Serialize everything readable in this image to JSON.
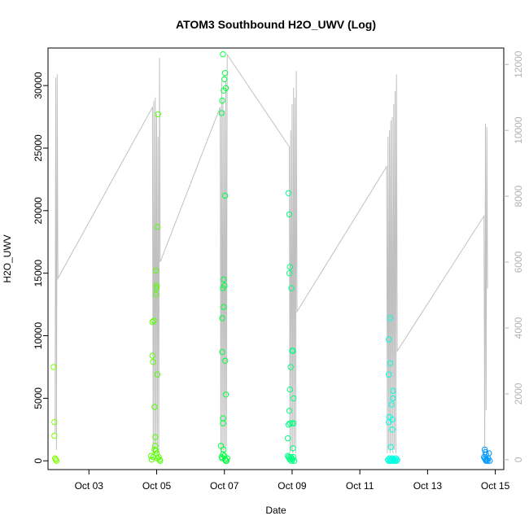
{
  "chart_data": {
    "type": "scatter",
    "title": "ATOM3 Southbound H2O_UWV (Log)",
    "xlabel": "Date",
    "ylabel": "H2O_UWV",
    "xlim": [
      "2016-10-01T19:00",
      "2016-10-15T06:00"
    ],
    "ylim": [
      -700,
      33000
    ],
    "y2lim": [
      -300,
      12500
    ],
    "x_ticks": [
      {
        "label": "Oct 03",
        "x": "2016-10-03"
      },
      {
        "label": "Oct 05",
        "x": "2016-10-05"
      },
      {
        "label": "Oct 07",
        "x": "2016-10-07"
      },
      {
        "label": "Oct 09",
        "x": "2016-10-09"
      },
      {
        "label": "Oct 11",
        "x": "2016-10-11"
      },
      {
        "label": "Oct 13",
        "x": "2016-10-13"
      },
      {
        "label": "Oct 15",
        "x": "2016-10-15"
      }
    ],
    "y_ticks": [
      0,
      5000,
      10000,
      15000,
      20000,
      25000,
      30000
    ],
    "y2_ticks": [
      0,
      2000,
      4000,
      6000,
      8000,
      10000,
      12000
    ],
    "series": [
      {
        "color": "#c0c0c0",
        "axis": "right",
        "style": "line",
        "points": [
          [
            "2016-10-02T00:00",
            800
          ],
          [
            "2016-10-02T00:30",
            11600
          ],
          [
            "2016-10-02T01:00",
            300
          ],
          [
            "2016-10-02T01:30",
            11700
          ],
          [
            "2016-10-02T02:00",
            5500
          ],
          [
            "2016-10-04T21:00",
            10700
          ],
          [
            "2016-10-04T21:30",
            200
          ],
          [
            "2016-10-04T22:00",
            10900
          ],
          [
            "2016-10-04T22:30",
            300
          ],
          [
            "2016-10-04T23:00",
            11000
          ],
          [
            "2016-10-04T23:30",
            400
          ],
          [
            "2016-10-05T00:00",
            10500
          ],
          [
            "2016-10-05T00:30",
            200
          ],
          [
            "2016-10-05T01:00",
            9800
          ],
          [
            "2016-10-05T01:30",
            300
          ],
          [
            "2016-10-05T02:00",
            12200
          ],
          [
            "2016-10-05T02:30",
            6000
          ],
          [
            "2016-10-06T21:00",
            10700
          ],
          [
            "2016-10-06T21:30",
            200
          ],
          [
            "2016-10-06T22:00",
            11500
          ],
          [
            "2016-10-06T22:30",
            300
          ],
          [
            "2016-10-06T23:00",
            11000
          ],
          [
            "2016-10-06T23:30",
            200
          ],
          [
            "2016-10-07T00:00",
            10600
          ],
          [
            "2016-10-07T00:30",
            300
          ],
          [
            "2016-10-07T01:00",
            11500
          ],
          [
            "2016-10-07T01:30",
            400
          ],
          [
            "2016-10-07T02:00",
            12300
          ],
          [
            "2016-10-08T22:00",
            9500
          ],
          [
            "2016-10-08T22:30",
            200
          ],
          [
            "2016-10-08T23:00",
            10000
          ],
          [
            "2016-10-08T23:30",
            300
          ],
          [
            "2016-10-09T00:00",
            10800
          ],
          [
            "2016-10-09T00:30",
            200
          ],
          [
            "2016-10-09T01:00",
            11300
          ],
          [
            "2016-10-09T01:30",
            400
          ],
          [
            "2016-10-09T02:00",
            11000
          ],
          [
            "2016-10-09T02:30",
            200
          ],
          [
            "2016-10-09T03:00",
            11800
          ],
          [
            "2016-10-09T03:30",
            4500
          ],
          [
            "2016-10-11T19:00",
            8900
          ],
          [
            "2016-10-11T19:30",
            200
          ],
          [
            "2016-10-11T20:00",
            9800
          ],
          [
            "2016-10-11T20:30",
            300
          ],
          [
            "2016-10-11T21:00",
            10000
          ],
          [
            "2016-10-11T21:30",
            200
          ],
          [
            "2016-10-11T22:00",
            10300
          ],
          [
            "2016-10-11T22:30",
            300
          ],
          [
            "2016-10-11T23:00",
            10400
          ],
          [
            "2016-10-11T23:30",
            200
          ],
          [
            "2016-10-12T00:00",
            10800
          ],
          [
            "2016-10-12T00:30",
            300
          ],
          [
            "2016-10-12T01:00",
            11200
          ],
          [
            "2016-10-12T01:30",
            200
          ],
          [
            "2016-10-12T02:00",
            11700
          ],
          [
            "2016-10-12T02:30",
            3300
          ],
          [
            "2016-10-14T16:00",
            7400
          ],
          [
            "2016-10-14T16:30",
            200
          ],
          [
            "2016-10-14T17:00",
            10200
          ],
          [
            "2016-10-14T17:30",
            1500
          ],
          [
            "2016-10-14T18:00",
            10100
          ],
          [
            "2016-10-14T18:30",
            5200
          ]
        ]
      },
      {
        "color": "#80ff00",
        "axis": "left",
        "style": "points",
        "points": [
          [
            "2016-10-01T23:00",
            7500
          ],
          [
            "2016-10-01T23:30",
            3100
          ],
          [
            "2016-10-01T23:30",
            2000
          ],
          [
            "2016-10-02T00:00",
            200
          ],
          [
            "2016-10-02T00:30",
            100
          ],
          [
            "2016-10-02T01:00",
            0
          ]
        ]
      },
      {
        "color": "#55ff00",
        "axis": "left",
        "style": "points",
        "points": [
          [
            "2016-10-04T21:00",
            11100
          ],
          [
            "2016-10-04T21:00",
            8400
          ],
          [
            "2016-10-04T21:30",
            7900
          ],
          [
            "2016-10-04T22:00",
            11200
          ],
          [
            "2016-10-04T22:30",
            4300
          ],
          [
            "2016-10-04T23:00",
            1900
          ],
          [
            "2016-10-04T23:00",
            1200
          ],
          [
            "2016-10-04T23:30",
            15200
          ],
          [
            "2016-10-04T23:30",
            13300
          ],
          [
            "2016-10-05T00:00",
            13800
          ],
          [
            "2016-10-05T00:00",
            14000
          ],
          [
            "2016-10-05T00:30",
            18700
          ],
          [
            "2016-10-05T00:30",
            6900
          ],
          [
            "2016-10-05T01:00",
            27700
          ],
          [
            "2016-10-04T20:00",
            400
          ],
          [
            "2016-10-04T20:30",
            100
          ],
          [
            "2016-10-04T21:30",
            300
          ],
          [
            "2016-10-04T22:30",
            900
          ],
          [
            "2016-10-04T23:30",
            800
          ],
          [
            "2016-10-05T00:00",
            600
          ],
          [
            "2016-10-05T00:30",
            200
          ],
          [
            "2016-10-05T01:30",
            300
          ],
          [
            "2016-10-05T02:00",
            100
          ],
          [
            "2016-10-05T02:30",
            0
          ]
        ]
      },
      {
        "color": "#00ff40",
        "axis": "left",
        "style": "points",
        "points": [
          [
            "2016-10-06T22:00",
            27800
          ],
          [
            "2016-10-06T22:30",
            28800
          ],
          [
            "2016-10-06T23:00",
            32500
          ],
          [
            "2016-10-06T23:30",
            29600
          ],
          [
            "2016-10-07T00:00",
            30500
          ],
          [
            "2016-10-07T00:30",
            31000
          ],
          [
            "2016-10-07T01:00",
            29800
          ],
          [
            "2016-10-07T00:30",
            21200
          ],
          [
            "2016-10-06T22:30",
            11400
          ],
          [
            "2016-10-06T23:00",
            13800
          ],
          [
            "2016-10-06T23:30",
            14500
          ],
          [
            "2016-10-07T00:00",
            14000
          ],
          [
            "2016-10-06T23:30",
            12300
          ],
          [
            "2016-10-06T22:30",
            8700
          ],
          [
            "2016-10-07T00:30",
            8000
          ],
          [
            "2016-10-07T01:00",
            5300
          ],
          [
            "2016-10-06T23:00",
            3400
          ],
          [
            "2016-10-06T23:00",
            3000
          ],
          [
            "2016-10-06T21:30",
            1200
          ],
          [
            "2016-10-06T22:00",
            300
          ],
          [
            "2016-10-06T22:30",
            200
          ],
          [
            "2016-10-06T23:00",
            500
          ],
          [
            "2016-10-06T23:30",
            900
          ],
          [
            "2016-10-07T00:00",
            400
          ],
          [
            "2016-10-07T00:30",
            100
          ],
          [
            "2016-10-07T01:00",
            0
          ],
          [
            "2016-10-07T01:30",
            0
          ],
          [
            "2016-10-07T02:00",
            200
          ]
        ]
      },
      {
        "color": "#00ff80",
        "axis": "left",
        "style": "points",
        "points": [
          [
            "2016-10-08T21:30",
            21400
          ],
          [
            "2016-10-08T22:00",
            19700
          ],
          [
            "2016-10-08T22:00",
            15000
          ],
          [
            "2016-10-08T22:30",
            15500
          ],
          [
            "2016-10-08T23:30",
            13800
          ],
          [
            "2016-10-09T00:00",
            8800
          ],
          [
            "2016-10-09T00:30",
            8800
          ],
          [
            "2016-10-08T23:00",
            7500
          ],
          [
            "2016-10-08T22:30",
            5700
          ],
          [
            "2016-10-09T01:00",
            5000
          ],
          [
            "2016-10-08T22:00",
            4000
          ],
          [
            "2016-10-08T22:30",
            3000
          ],
          [
            "2016-10-08T21:30",
            2900
          ],
          [
            "2016-10-09T00:00",
            3000
          ],
          [
            "2016-10-09T01:00",
            3000
          ],
          [
            "2016-10-08T21:00",
            1800
          ],
          [
            "2016-10-09T00:30",
            1000
          ],
          [
            "2016-10-08T21:00",
            400
          ],
          [
            "2016-10-08T21:30",
            300
          ],
          [
            "2016-10-08T22:00",
            200
          ],
          [
            "2016-10-08T22:30",
            100
          ],
          [
            "2016-10-08T23:00",
            300
          ],
          [
            "2016-10-08T23:30",
            0
          ],
          [
            "2016-10-09T00:00",
            200
          ],
          [
            "2016-10-09T00:30",
            100
          ],
          [
            "2016-10-09T01:00",
            300
          ],
          [
            "2016-10-09T01:30",
            0
          ]
        ]
      },
      {
        "color": "#00ffe0",
        "axis": "left",
        "style": "points",
        "points": [
          [
            "2016-10-11T21:30",
            11400
          ],
          [
            "2016-10-11T20:30",
            9700
          ],
          [
            "2016-10-11T21:30",
            7800
          ],
          [
            "2016-10-11T20:30",
            6900
          ],
          [
            "2016-10-11T23:30",
            5600
          ],
          [
            "2016-10-11T23:30",
            5000
          ],
          [
            "2016-10-11T22:30",
            4500
          ],
          [
            "2016-10-11T21:00",
            3500
          ],
          [
            "2016-10-11T20:30",
            3100
          ],
          [
            "2016-10-11T23:00",
            3300
          ],
          [
            "2016-10-11T23:00",
            2500
          ],
          [
            "2016-10-11T22:00",
            1100
          ],
          [
            "2016-10-11T20:00",
            100
          ],
          [
            "2016-10-11T20:30",
            0
          ],
          [
            "2016-10-11T21:00",
            200
          ],
          [
            "2016-10-11T21:30",
            0
          ],
          [
            "2016-10-11T22:00",
            100
          ],
          [
            "2016-10-11T22:30",
            0
          ],
          [
            "2016-10-11T23:00",
            200
          ],
          [
            "2016-10-11T23:30",
            100
          ],
          [
            "2016-10-12T00:00",
            0
          ],
          [
            "2016-10-12T00:30",
            100
          ],
          [
            "2016-10-12T01:00",
            0
          ],
          [
            "2016-10-12T01:30",
            200
          ],
          [
            "2016-10-12T02:00",
            0
          ],
          [
            "2016-10-12T02:30",
            100
          ]
        ]
      },
      {
        "color": "#0099ff",
        "axis": "left",
        "style": "points",
        "points": [
          [
            "2016-10-14T16:30",
            900
          ],
          [
            "2016-10-14T17:00",
            700
          ],
          [
            "2016-10-14T17:30",
            500
          ],
          [
            "2016-10-14T16:00",
            300
          ],
          [
            "2016-10-14T16:30",
            200
          ],
          [
            "2016-10-14T17:00",
            100
          ],
          [
            "2016-10-14T17:30",
            0
          ],
          [
            "2016-10-14T18:00",
            100
          ],
          [
            "2016-10-14T18:30",
            0
          ],
          [
            "2016-10-14T19:00",
            200
          ],
          [
            "2016-10-14T19:30",
            600
          ],
          [
            "2016-10-14T20:00",
            0
          ]
        ]
      }
    ]
  }
}
